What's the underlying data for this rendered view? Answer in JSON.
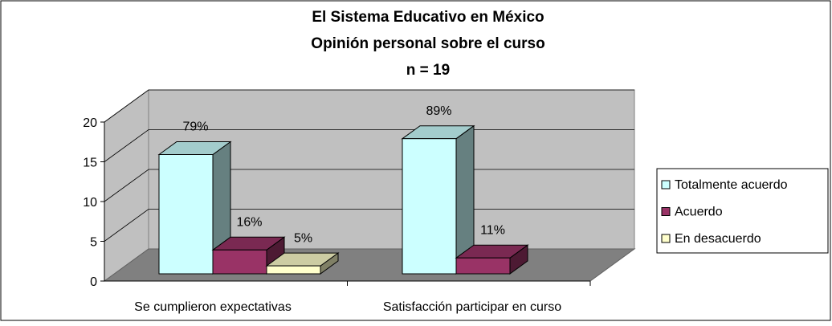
{
  "chart_data": {
    "type": "bar3d",
    "title": [
      "El Sistema Educativo en México",
      "Opinión personal sobre el curso",
      "n = 19"
    ],
    "categories": [
      "Se cumplieron expectativas",
      "Satisfacción participar en curso"
    ],
    "series": [
      {
        "name": "Totalmente acuerdo",
        "color": "#ccffff",
        "values": [
          15,
          17
        ],
        "value_labels": [
          "79%",
          "89%"
        ]
      },
      {
        "name": "Acuerdo",
        "color": "#993366",
        "values": [
          3,
          2
        ],
        "value_labels": [
          "16%",
          "11%"
        ]
      },
      {
        "name": "En desacuerdo",
        "color": "#ffffcc",
        "values": [
          1,
          null
        ],
        "value_labels": [
          "5%",
          null
        ]
      }
    ],
    "ylim": [
      0,
      20
    ],
    "yticks": [
      0,
      5,
      10,
      15,
      20
    ],
    "grid": true,
    "legend": "right"
  }
}
